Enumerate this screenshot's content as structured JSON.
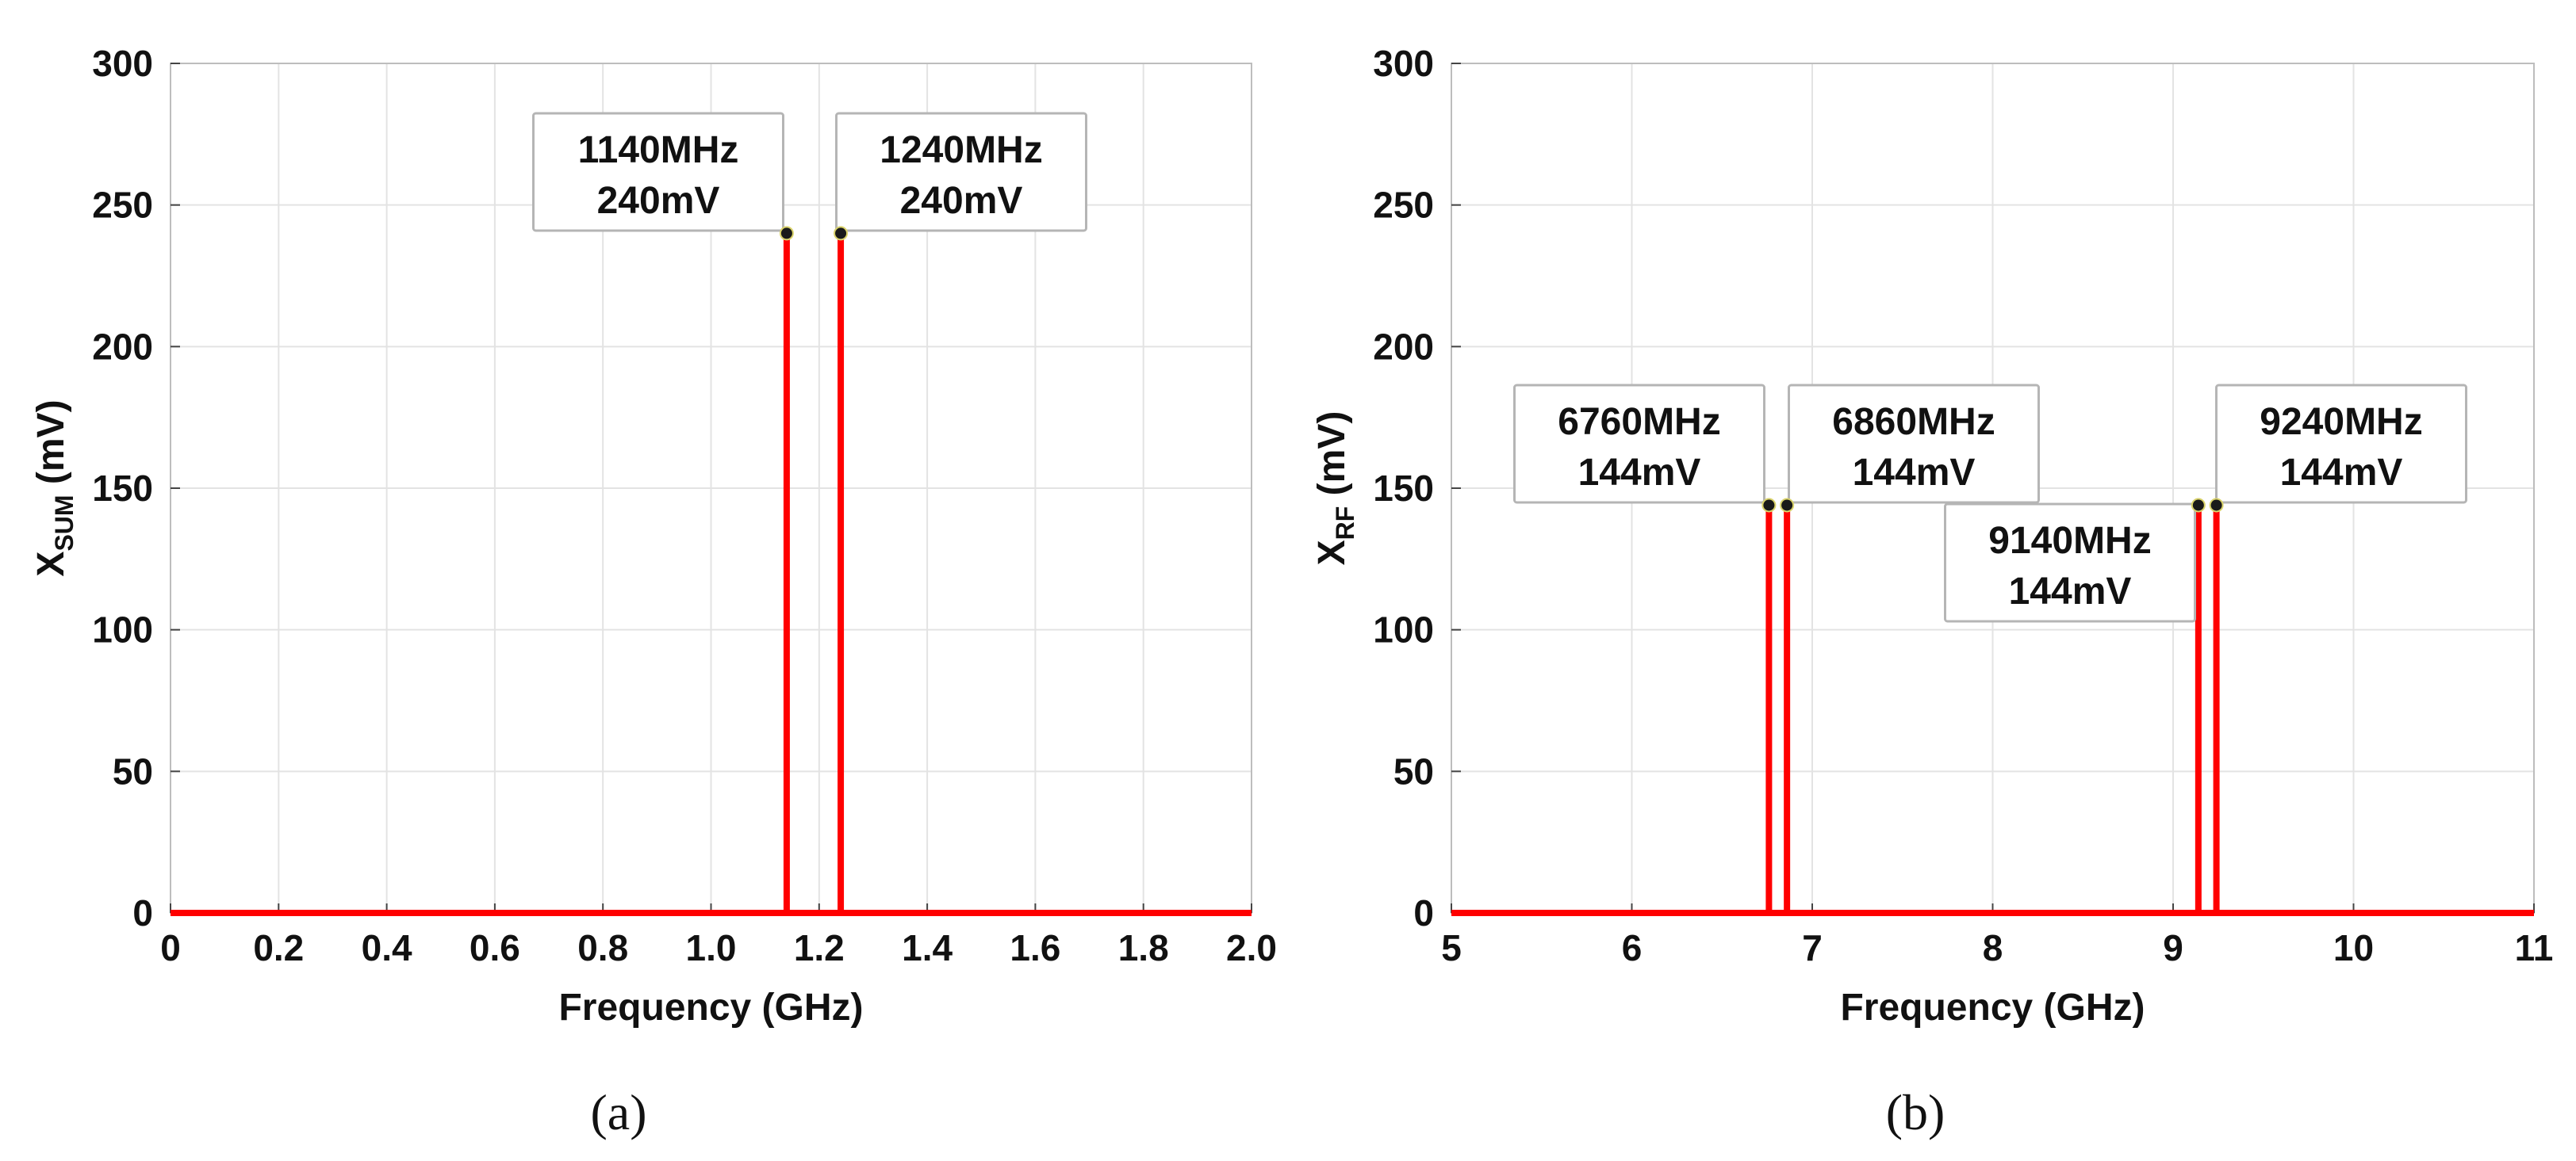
{
  "chart_data": [
    {
      "type": "line",
      "subplot_label": "(a)",
      "xlabel": "Frequency (GHz)",
      "ylabel": {
        "main": "X",
        "subscript": "SUM",
        "unit": " (mV)"
      },
      "xlim": [
        0,
        2.0
      ],
      "ylim": [
        0,
        300
      ],
      "xticks": [
        0,
        0.2,
        0.4,
        0.6,
        0.8,
        1.0,
        1.2,
        1.4,
        1.6,
        1.8,
        2.0
      ],
      "xtick_labels": [
        "0",
        "0.2",
        "0.4",
        "0.6",
        "0.8",
        "1.0",
        "1.2",
        "1.4",
        "1.6",
        "1.8",
        "2.0"
      ],
      "yticks": [
        0,
        50,
        100,
        150,
        200,
        250,
        300
      ],
      "ytick_labels": [
        "0",
        "50",
        "100",
        "150",
        "200",
        "250",
        "300"
      ],
      "grid": true,
      "series_color": "#ff0000",
      "peaks": [
        {
          "x": 1.14,
          "y": 240,
          "label_line1": "1140MHz",
          "label_line2": "240mV",
          "label_side": "left"
        },
        {
          "x": 1.24,
          "y": 240,
          "label_line1": "1240MHz",
          "label_line2": "240mV",
          "label_side": "right"
        }
      ]
    },
    {
      "type": "line",
      "subplot_label": "(b)",
      "xlabel": "Frequency (GHz)",
      "ylabel": {
        "main": "X",
        "subscript": "RF",
        "unit": " (mV)"
      },
      "xlim": [
        5,
        11
      ],
      "ylim": [
        0,
        300
      ],
      "xticks": [
        5,
        6,
        7,
        8,
        9,
        10,
        11
      ],
      "xtick_labels": [
        "5",
        "6",
        "7",
        "8",
        "9",
        "10",
        "11"
      ],
      "yticks": [
        0,
        50,
        100,
        150,
        200,
        250,
        300
      ],
      "ytick_labels": [
        "0",
        "50",
        "100",
        "150",
        "200",
        "250",
        "300"
      ],
      "grid": true,
      "series_color": "#ff0000",
      "peaks": [
        {
          "x": 6.76,
          "y": 144,
          "label_line1": "6760MHz",
          "label_line2": "144mV",
          "label_side": "left"
        },
        {
          "x": 6.86,
          "y": 144,
          "label_line1": "6860MHz",
          "label_line2": "144mV",
          "label_side": "right"
        },
        {
          "x": 9.14,
          "y": 144,
          "label_line1": "9140MHz",
          "label_line2": "144mV",
          "label_side": "left-below"
        },
        {
          "x": 9.24,
          "y": 144,
          "label_line1": "9240MHz",
          "label_line2": "144mV",
          "label_side": "right"
        }
      ]
    }
  ]
}
